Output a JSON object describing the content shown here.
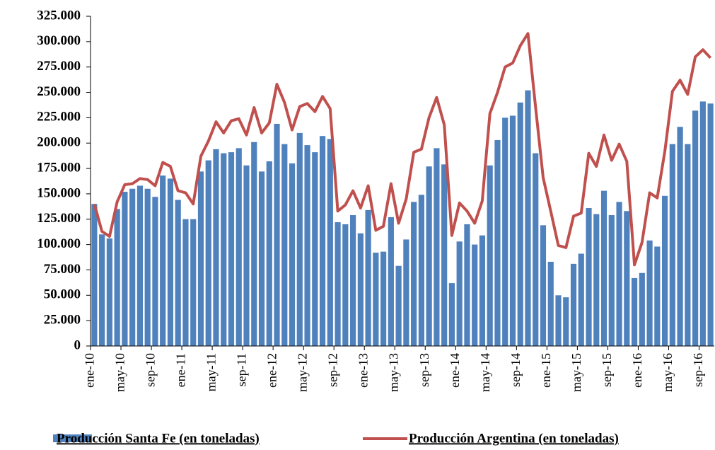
{
  "chart_data": {
    "type": "bar_line",
    "categories": [
      "ene-10",
      null,
      null,
      null,
      "may-10",
      null,
      null,
      null,
      "sep-10",
      null,
      null,
      null,
      "ene-11",
      null,
      null,
      null,
      "may-11",
      null,
      null,
      null,
      "sep-11",
      null,
      null,
      null,
      "ene-12",
      null,
      null,
      null,
      "may-12",
      null,
      null,
      null,
      "sep-12",
      null,
      null,
      null,
      "ene-13",
      null,
      null,
      null,
      "may-13",
      null,
      null,
      null,
      "sep-13",
      null,
      null,
      null,
      "ene-14",
      null,
      null,
      null,
      "may-14",
      null,
      null,
      null,
      "sep-14",
      null,
      null,
      null,
      "ene-15",
      null,
      null,
      null,
      "may-15",
      null,
      null,
      null,
      "sep-15",
      null,
      null,
      null,
      "ene-16",
      null,
      null,
      null,
      "may-16",
      null,
      null,
      null,
      "sep-16",
      null
    ],
    "series": [
      {
        "name": "Producción Santa Fe (en toneladas)",
        "color": "#4f81bd",
        "kind": "bar",
        "values": [
          140000,
          110000,
          106000,
          135000,
          152000,
          155000,
          158000,
          155000,
          147000,
          168000,
          165000,
          144000,
          125000,
          125000,
          172000,
          183000,
          194000,
          190000,
          191000,
          195000,
          178000,
          201000,
          172000,
          182000,
          219000,
          199000,
          180000,
          210000,
          198000,
          191000,
          207000,
          204000,
          122000,
          120000,
          129000,
          111000,
          134000,
          92000,
          93000,
          127000,
          79000,
          105000,
          142000,
          149000,
          177000,
          195000,
          179000,
          62000,
          103000,
          120000,
          100000,
          109000,
          178000,
          203000,
          225000,
          227000,
          240000,
          252000,
          190000,
          119000,
          83000,
          50000,
          48000,
          81000,
          91000,
          136000,
          130000,
          153000,
          129000,
          142000,
          133000,
          67000,
          72000,
          104000,
          98000,
          148000,
          199000,
          216000,
          199000,
          232000,
          241000,
          239000
        ]
      },
      {
        "name": "Producción Argentina (en toneladas)",
        "color": "#c0504d",
        "kind": "line",
        "values": [
          140000,
          113000,
          108000,
          142000,
          159000,
          160000,
          165000,
          164000,
          158000,
          181000,
          177000,
          153000,
          151000,
          140000,
          187000,
          202000,
          221000,
          210000,
          222000,
          224000,
          208000,
          235000,
          210000,
          220000,
          258000,
          240000,
          213000,
          236000,
          239000,
          231000,
          246000,
          234000,
          133000,
          139000,
          153000,
          136000,
          158000,
          114000,
          118000,
          160000,
          121000,
          145000,
          191000,
          194000,
          225000,
          245000,
          218000,
          109000,
          141000,
          133000,
          121000,
          143000,
          229000,
          250000,
          275000,
          279000,
          296000,
          308000,
          236000,
          166000,
          133000,
          99000,
          97000,
          128000,
          131000,
          190000,
          177000,
          208000,
          183000,
          199000,
          182000,
          80000,
          102000,
          151000,
          146000,
          192000,
          251000,
          262000,
          248000,
          285000,
          292000,
          284000
        ]
      }
    ],
    "ylim": [
      0,
      325000
    ],
    "yticks": [
      0,
      {
        "value": 25000,
        "label": "25.000"
      },
      {
        "value": 50000,
        "label": "50.000"
      },
      {
        "value": 75000,
        "label": "75.000"
      },
      {
        "value": 100000,
        "label": "100.000"
      },
      {
        "value": 125000,
        "label": "125.000"
      },
      {
        "value": 150000,
        "label": "150.000"
      },
      {
        "value": 175000,
        "label": "175.000"
      },
      {
        "value": 200000,
        "label": "200.000"
      },
      {
        "value": 225000,
        "label": "225.000"
      },
      {
        "value": 250000,
        "label": "250.000"
      },
      {
        "value": 275000,
        "label": "275.000"
      },
      {
        "value": 300000,
        "label": "300.000"
      },
      {
        "value": 325000,
        "label": "325.000"
      }
    ],
    "grid": false,
    "legend": "bottom"
  }
}
